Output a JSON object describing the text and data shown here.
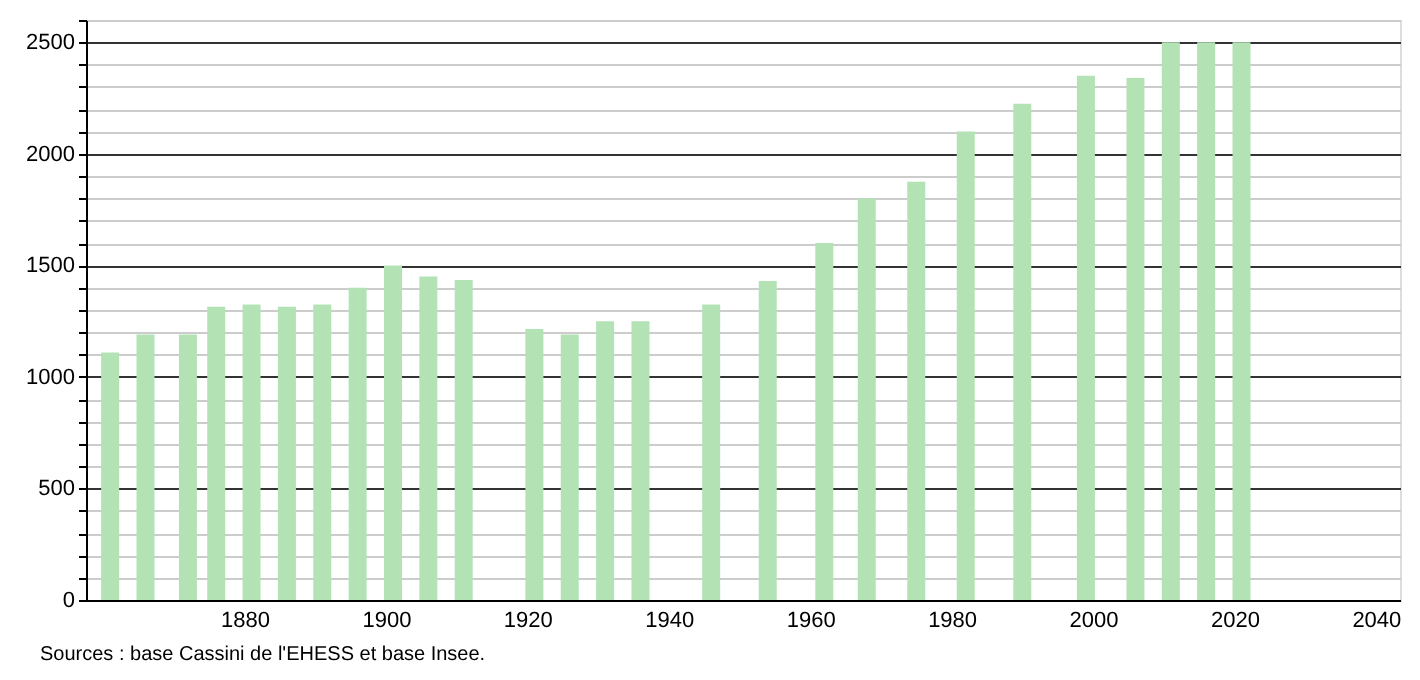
{
  "chart_data": {
    "type": "bar",
    "x": [
      1861,
      1866,
      1872,
      1876,
      1881,
      1886,
      1891,
      1896,
      1901,
      1906,
      1911,
      1921,
      1926,
      1931,
      1936,
      1946,
      1954,
      1962,
      1968,
      1975,
      1982,
      1990,
      1999,
      2006,
      2011,
      2016,
      2021
    ],
    "values": [
      1110,
      1190,
      1190,
      1315,
      1325,
      1315,
      1325,
      1400,
      1500,
      1450,
      1435,
      1215,
      1190,
      1250,
      1250,
      1325,
      1430,
      1600,
      1800,
      1875,
      2100,
      2225,
      2350,
      2340,
      2500,
      2500,
      2500
    ],
    "color": "#b3e3b5",
    "xlim": [
      1859,
      2042
    ],
    "xticks": [
      1880,
      1900,
      1920,
      1940,
      1960,
      1980,
      2000,
      2020,
      2040
    ],
    "ylim": [
      0,
      2600
    ],
    "yticks": [
      0,
      {
        "value": 100,
        "label": null
      },
      {
        "value": 200,
        "label": null
      },
      {
        "value": 300,
        "label": null
      },
      {
        "value": 400,
        "label": null
      },
      500,
      {
        "value": 600,
        "label": null
      },
      {
        "value": 700,
        "label": null
      },
      {
        "value": 800,
        "label": null
      },
      {
        "value": 900,
        "label": null
      },
      1000,
      {
        "value": 1100,
        "label": null
      },
      {
        "value": 1200,
        "label": null
      },
      {
        "value": 1300,
        "label": null
      },
      {
        "value": 1400,
        "label": null
      },
      1500,
      {
        "value": 1600,
        "label": null
      },
      {
        "value": 1700,
        "label": null
      },
      {
        "value": 1800,
        "label": null
      },
      {
        "value": 1900,
        "label": null
      },
      2000,
      {
        "value": 2100,
        "label": null
      },
      {
        "value": 2200,
        "label": null
      },
      {
        "value": 2300,
        "label": null
      },
      {
        "value": 2400,
        "label": null
      },
      2500,
      {
        "value": 2600,
        "label": null
      }
    ],
    "grid": "y",
    "annotations": [
      "Sources : base Cassini de l'EHESS et base Insee."
    ]
  }
}
